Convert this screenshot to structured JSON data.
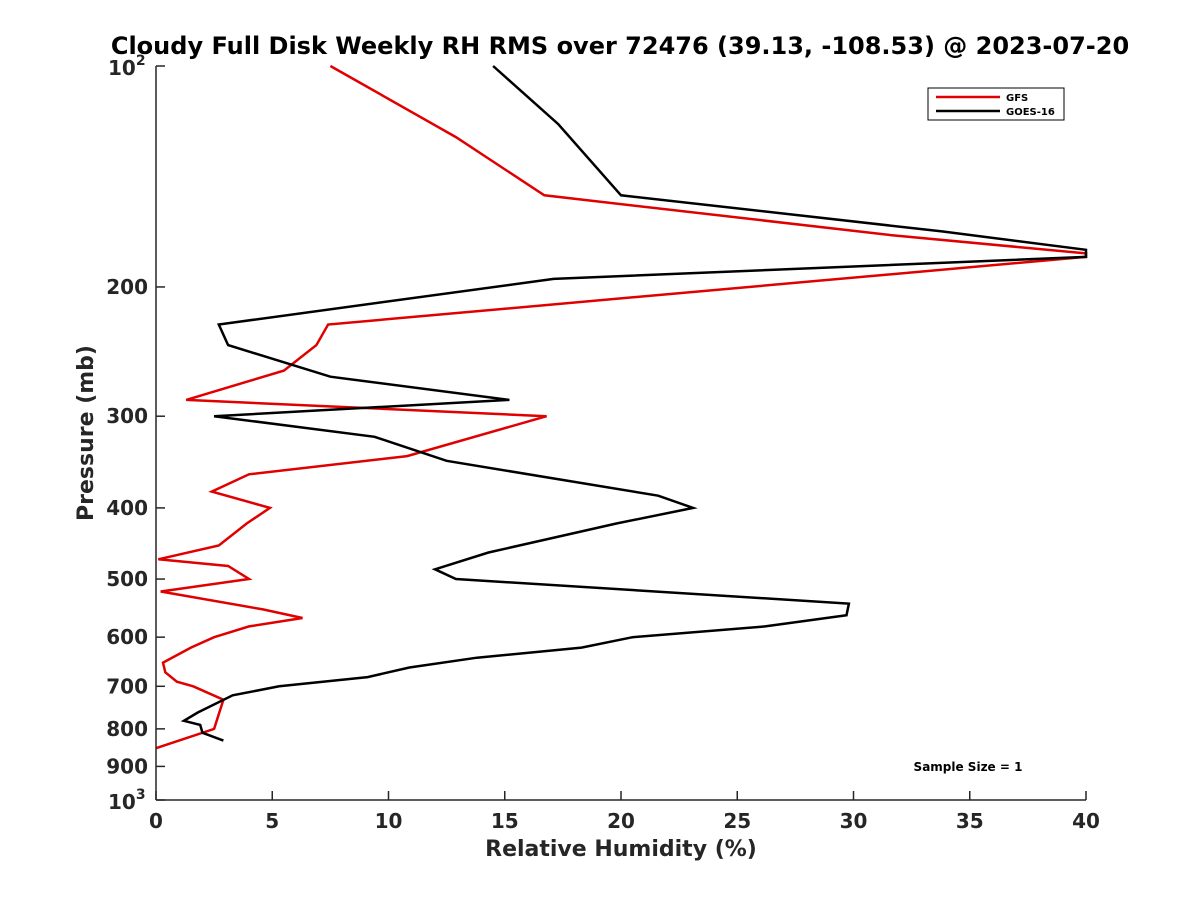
{
  "chart_data": {
    "type": "line",
    "title": "Cloudy Full Disk Weekly RH RMS over 72476 (39.13, -108.53) @ 2023-07-20",
    "xlabel": "Relative Humidity (%)",
    "ylabel": "Pressure (mb)",
    "xlim": [
      0,
      40
    ],
    "ylim": [
      100,
      1000
    ],
    "y_scale": "log",
    "y_reversed": true,
    "grid": false,
    "legend_position": "top-right",
    "x_ticks": [
      0,
      5,
      10,
      15,
      20,
      25,
      30,
      35,
      40
    ],
    "y_ticks": [
      {
        "value": 100,
        "base": "10",
        "exp": "2"
      },
      {
        "value": 200,
        "label": "200"
      },
      {
        "value": 300,
        "label": "300"
      },
      {
        "value": 400,
        "label": "400"
      },
      {
        "value": 500,
        "label": "500"
      },
      {
        "value": 600,
        "label": "600"
      },
      {
        "value": 700,
        "label": "700"
      },
      {
        "value": 800,
        "label": "800"
      },
      {
        "value": 900,
        "label": "900"
      },
      {
        "value": 1000,
        "base": "10",
        "exp": "3"
      }
    ],
    "annotation": "Sample Size = 1",
    "series": [
      {
        "name": "GFS",
        "color": "#e00000",
        "points": [
          [
            7.5,
            100
          ],
          [
            12.9,
            125
          ],
          [
            16.7,
            150
          ],
          [
            31.6,
            170
          ],
          [
            40,
            180
          ],
          [
            40,
            182
          ],
          [
            7.4,
            225
          ],
          [
            6.9,
            240
          ],
          [
            5.5,
            260
          ],
          [
            1.3,
            285
          ],
          [
            16.8,
            300
          ],
          [
            10.8,
            340
          ],
          [
            4.0,
            360
          ],
          [
            2.4,
            380
          ],
          [
            4.9,
            400
          ],
          [
            3.9,
            420
          ],
          [
            2.7,
            450
          ],
          [
            0.1,
            470
          ],
          [
            3.1,
            480
          ],
          [
            4.0,
            500
          ],
          [
            0.2,
            520
          ],
          [
            4.6,
            550
          ],
          [
            6.3,
            565
          ],
          [
            4.0,
            580
          ],
          [
            2.5,
            600
          ],
          [
            1.5,
            620
          ],
          [
            0.3,
            650
          ],
          [
            0.4,
            670
          ],
          [
            0.9,
            690
          ],
          [
            1.6,
            700
          ],
          [
            2.9,
            730
          ],
          [
            2.5,
            800
          ],
          [
            0.0,
            850
          ]
        ]
      },
      {
        "name": "GOES-16",
        "color": "#000000",
        "points": [
          [
            14.5,
            100
          ],
          [
            17.3,
            120
          ],
          [
            20.0,
            150
          ],
          [
            33.8,
            168
          ],
          [
            40,
            178
          ],
          [
            40,
            182
          ],
          [
            17.1,
            195
          ],
          [
            2.7,
            225
          ],
          [
            3.1,
            240
          ],
          [
            7.5,
            265
          ],
          [
            15.2,
            285
          ],
          [
            2.5,
            300
          ],
          [
            9.4,
            320
          ],
          [
            12.5,
            345
          ],
          [
            21.6,
            385
          ],
          [
            23.1,
            400
          ],
          [
            19.8,
            420
          ],
          [
            14.3,
            460
          ],
          [
            12.0,
            485
          ],
          [
            12.9,
            500
          ],
          [
            29.8,
            540
          ],
          [
            29.7,
            560
          ],
          [
            26.2,
            580
          ],
          [
            20.5,
            600
          ],
          [
            18.3,
            620
          ],
          [
            13.8,
            640
          ],
          [
            10.9,
            660
          ],
          [
            9.1,
            680
          ],
          [
            5.3,
            700
          ],
          [
            3.3,
            720
          ],
          [
            1.8,
            760
          ],
          [
            1.2,
            780
          ],
          [
            1.9,
            790
          ],
          [
            2.0,
            810
          ],
          [
            2.9,
            830
          ]
        ]
      }
    ]
  }
}
